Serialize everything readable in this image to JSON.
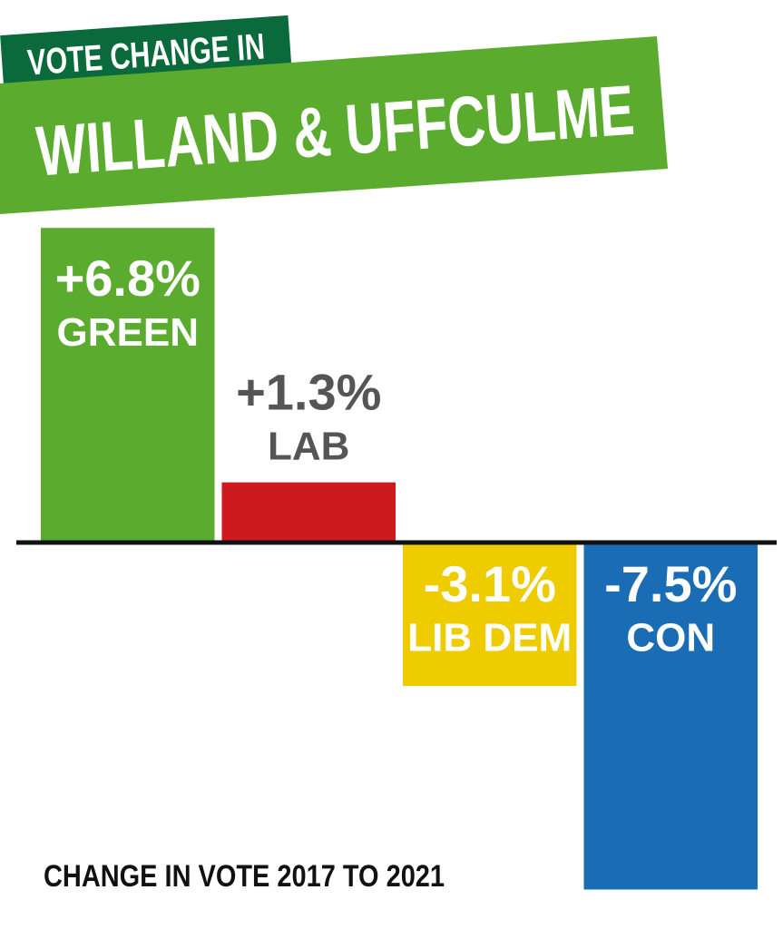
{
  "chart_data": {
    "type": "bar",
    "title": "VOTE CHANGE IN",
    "subtitle": "WILLAND & UFFCULME",
    "note": "CHANGE IN VOTE 2017 TO 2021",
    "categories": [
      "GREEN",
      "LAB",
      "LIB DEM",
      "CON"
    ],
    "values": [
      6.8,
      1.3,
      -3.1,
      -7.5
    ],
    "value_labels": [
      "+6.8%",
      "+1.3%",
      "-3.1%",
      "-7.5%"
    ],
    "colors": [
      "#5aab2e",
      "#cc1a1f",
      "#eecc00",
      "#1a6db5"
    ],
    "ylim": [
      -8,
      7
    ]
  }
}
